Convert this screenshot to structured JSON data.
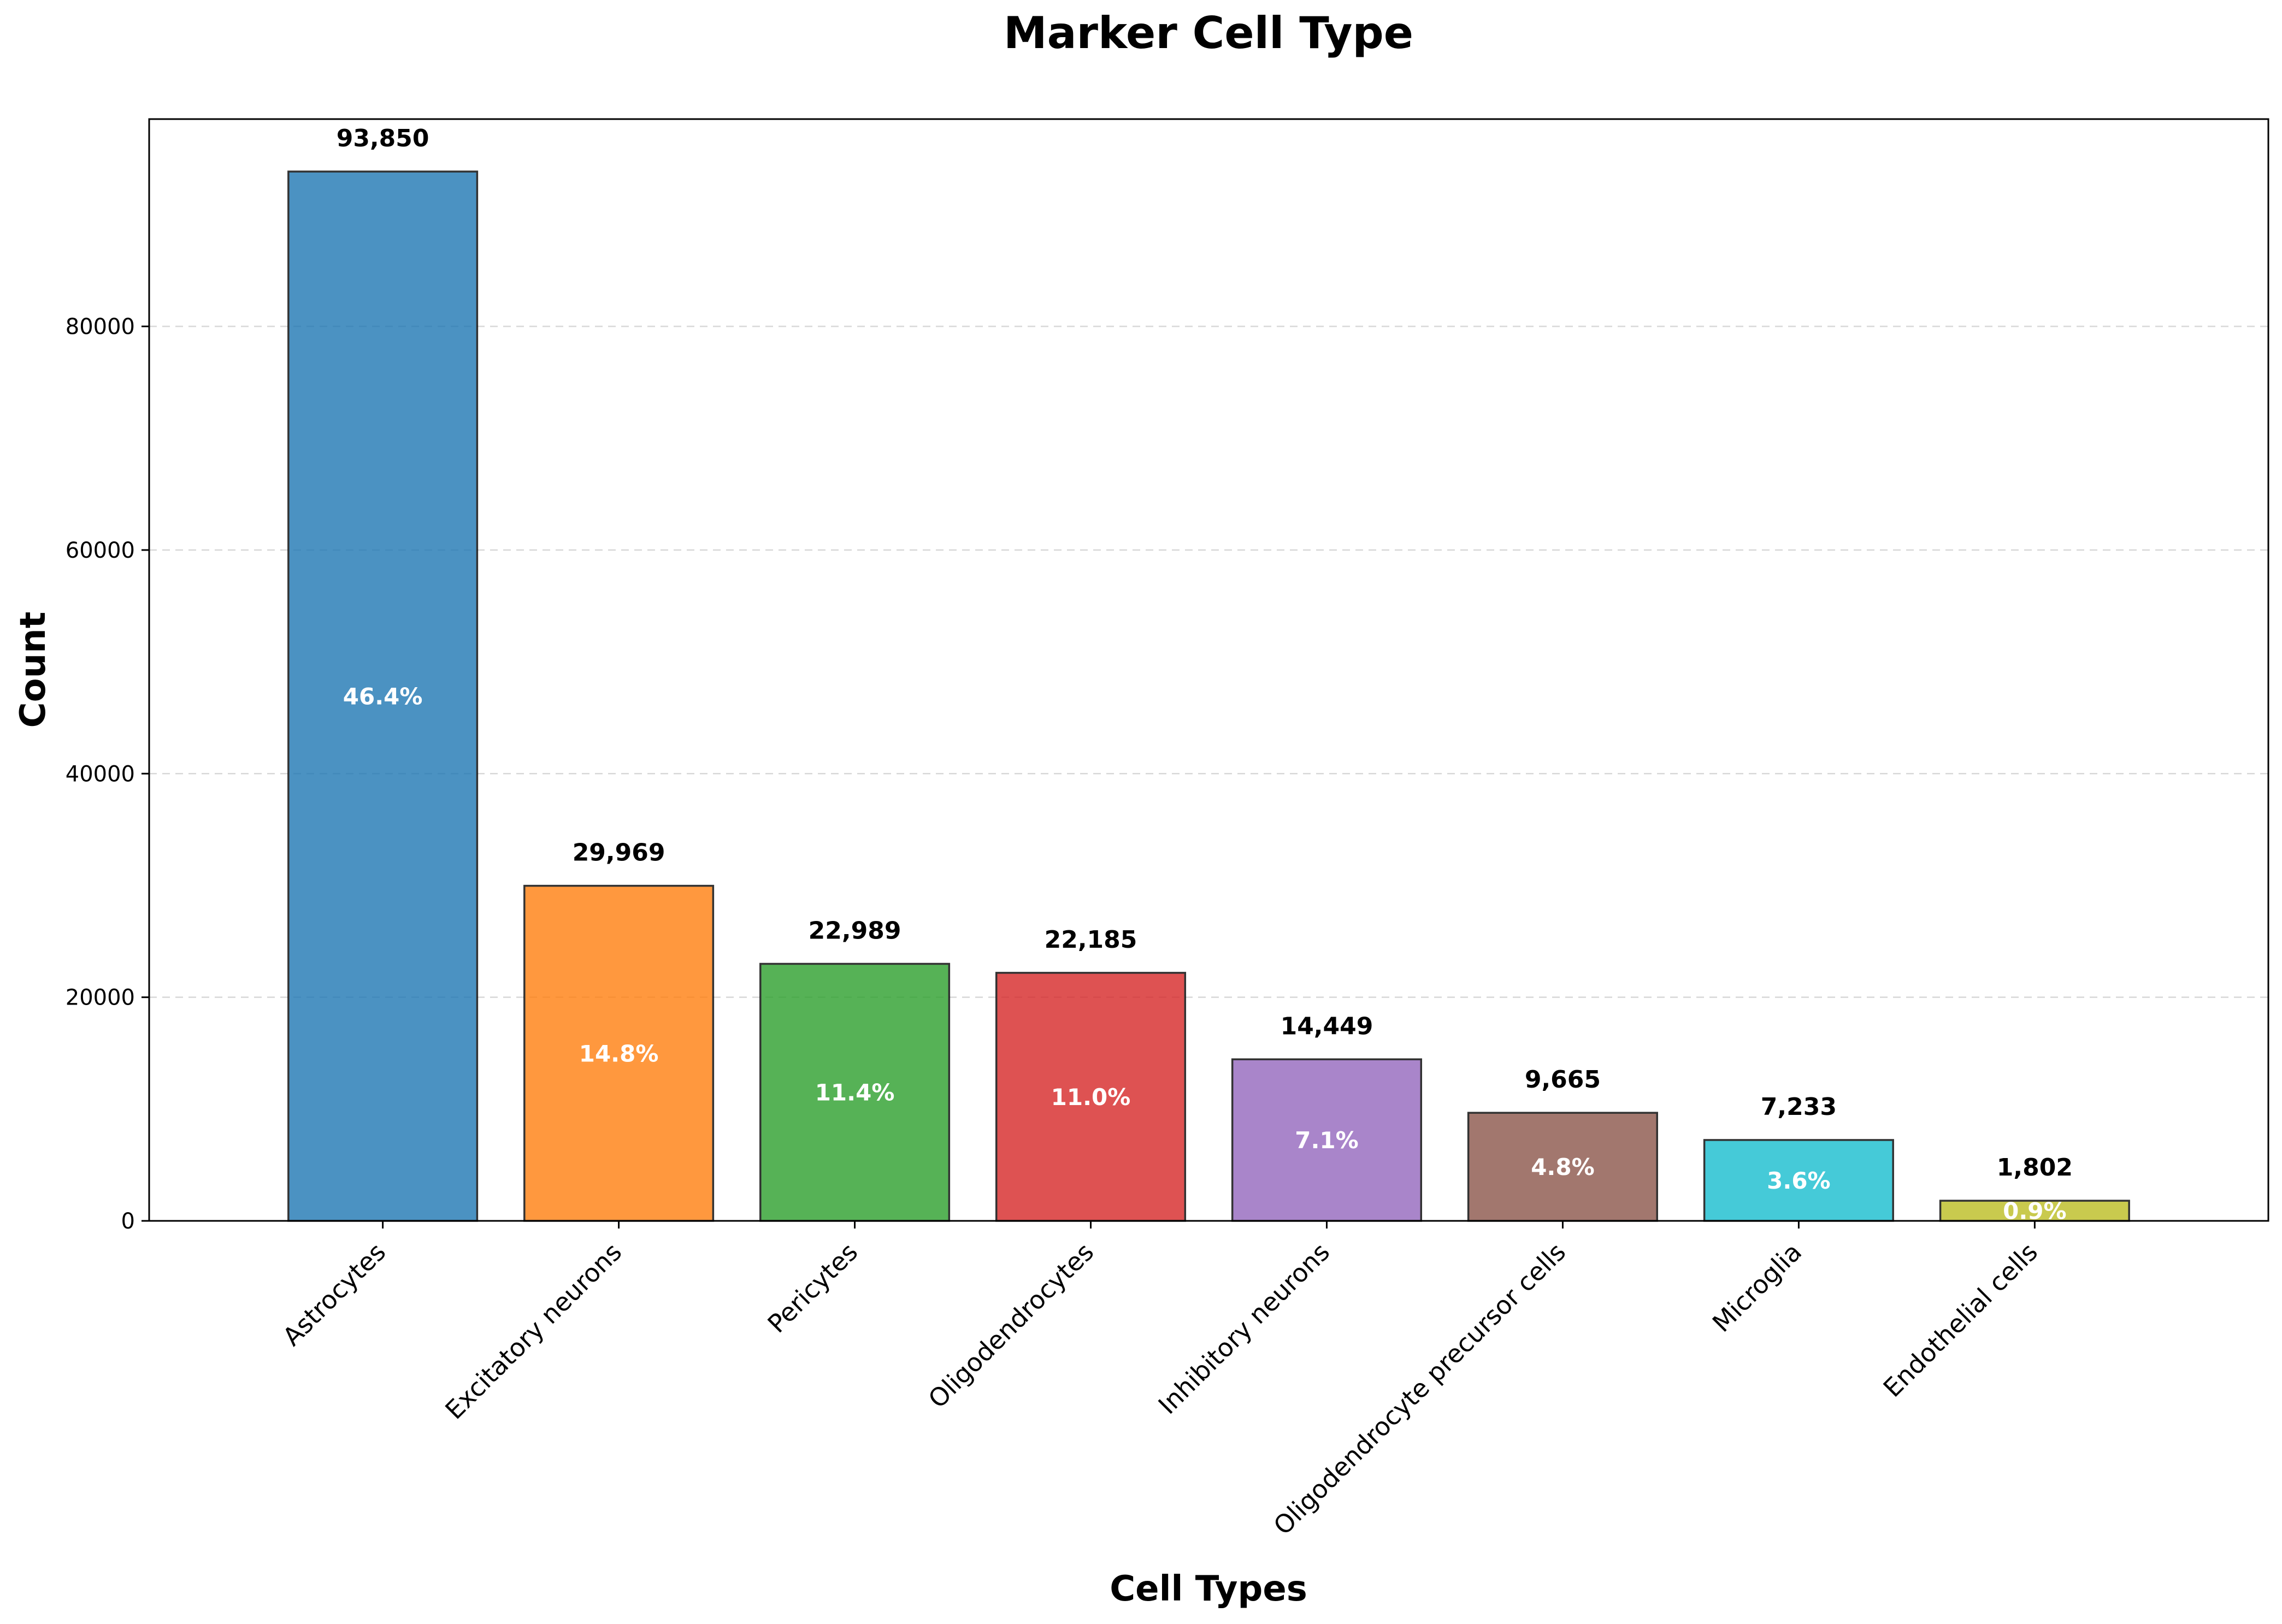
{
  "chart_data": {
    "type": "bar",
    "title": "Marker Cell Type",
    "xlabel": "Cell Types",
    "ylabel": "Count",
    "ylim": [
      0,
      98542.5
    ],
    "yticks": [
      0,
      20000,
      40000,
      60000,
      80000
    ],
    "ytick_labels": [
      "0",
      "20000",
      "40000",
      "60000",
      "80000"
    ],
    "grid": "y-dashed",
    "categories": [
      "Astrocytes",
      "Excitatory neurons",
      "Pericytes",
      "Oligodendrocytes",
      "Inhibitory neurons",
      "Oligodendrocyte precursor cells",
      "Microglia",
      "Endothelial cells"
    ],
    "values": [
      93850,
      29969,
      22989,
      22185,
      14449,
      9665,
      7233,
      1802
    ],
    "value_labels": [
      "93,850",
      "29,969",
      "22,989",
      "22,185",
      "14,449",
      "9,665",
      "7,233",
      "1,802"
    ],
    "percent_labels": [
      "46.4%",
      "14.8%",
      "11.4%",
      "11.0%",
      "7.1%",
      "4.8%",
      "3.6%",
      "0.9%"
    ],
    "colors": [
      "#1f77b4",
      "#ff7f0e",
      "#2ca02c",
      "#d62728",
      "#9467bd",
      "#8c564b",
      "#17becf",
      "#bcbd22"
    ]
  }
}
